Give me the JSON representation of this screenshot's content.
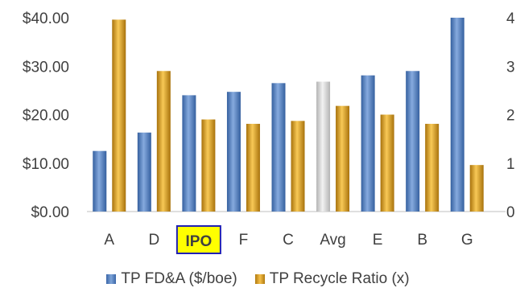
{
  "chart_data": {
    "type": "bar",
    "categories": [
      "A",
      "D",
      "IPO",
      "F",
      "C",
      "Avg",
      "E",
      "B",
      "G"
    ],
    "highlight_category": "IPO",
    "series": [
      {
        "name": "TP FD&A ($/boe)",
        "axis": "left",
        "values": [
          12.5,
          16.3,
          24.0,
          24.7,
          26.5,
          26.8,
          28.1,
          29.0,
          40.0
        ]
      },
      {
        "name": "TP Recycle Ratio (x)",
        "axis": "right",
        "values": [
          3.96,
          2.9,
          1.9,
          1.81,
          1.87,
          2.18,
          2.0,
          1.81,
          0.96
        ]
      }
    ],
    "y_left": {
      "ylim": [
        0,
        40
      ],
      "ticks": [
        "$0.00",
        "$10.00",
        "$20.00",
        "$30.00",
        "$40.00"
      ]
    },
    "y_right": {
      "ylim": [
        0,
        4
      ],
      "ticks": [
        "0",
        "1",
        "2",
        "3",
        "4"
      ]
    },
    "grid": false,
    "legend_position": "bottom",
    "colors": {
      "series1": "#4f7fc4",
      "series1_avg": "#d9d9d9",
      "series2": "#e3a22a",
      "highlight_box": "#ffff00",
      "highlight_border": "#1f1fb4"
    }
  }
}
